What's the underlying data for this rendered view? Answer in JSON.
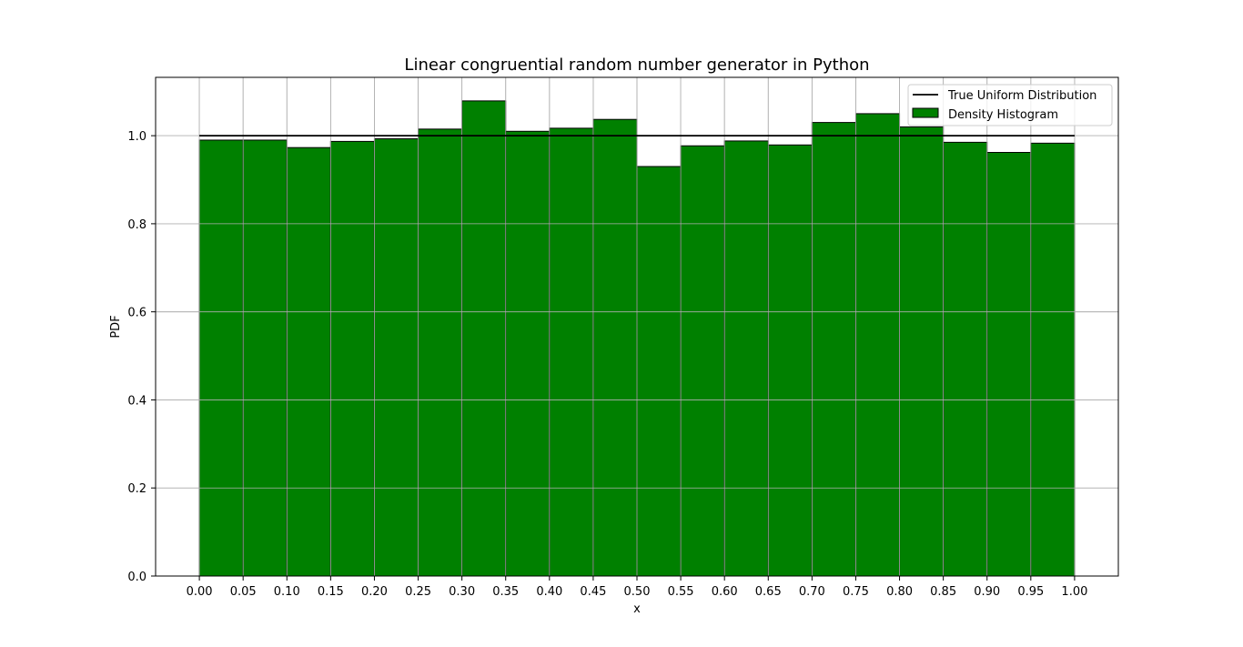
{
  "chart_data": {
    "type": "bar",
    "title": "Linear congruential random number generator in Python",
    "xlabel": "x",
    "ylabel": "PDF",
    "xlim": [
      -0.05,
      1.05
    ],
    "ylim": [
      0.0,
      1.1325
    ],
    "grid": true,
    "legend_position": "top-right",
    "bin_edges": [
      0.0,
      0.05,
      0.1,
      0.15,
      0.2,
      0.25,
      0.3,
      0.35,
      0.4,
      0.45,
      0.5,
      0.55,
      0.6,
      0.65,
      0.7,
      0.75,
      0.8,
      0.85,
      0.9,
      0.95,
      1.0
    ],
    "series": [
      {
        "name": "True Uniform Distribution",
        "kind": "line",
        "color": "#000000",
        "x": [
          0.0,
          1.0
        ],
        "y": [
          1.0,
          1.0
        ]
      },
      {
        "name": "Density Histogram",
        "kind": "histogram",
        "color": "#008000",
        "edgecolor": "#000000",
        "values": [
          0.99,
          0.99,
          0.973,
          0.987,
          0.993,
          1.015,
          1.079,
          1.01,
          1.017,
          1.037,
          0.93,
          0.977,
          0.988,
          0.979,
          1.03,
          1.05,
          1.02,
          0.985,
          0.962,
          0.983
        ]
      }
    ],
    "x_ticks": [
      "0.00",
      "0.05",
      "0.10",
      "0.15",
      "0.20",
      "0.25",
      "0.30",
      "0.35",
      "0.40",
      "0.45",
      "0.50",
      "0.55",
      "0.60",
      "0.65",
      "0.70",
      "0.75",
      "0.80",
      "0.85",
      "0.90",
      "0.95",
      "1.00"
    ],
    "x_tick_values": [
      0.0,
      0.05,
      0.1,
      0.15,
      0.2,
      0.25,
      0.3,
      0.35,
      0.4,
      0.45,
      0.5,
      0.55,
      0.6,
      0.65,
      0.7,
      0.75,
      0.8,
      0.85,
      0.9,
      0.95,
      1.0
    ],
    "y_ticks": [
      "0.0",
      "0.2",
      "0.4",
      "0.6",
      "0.8",
      "1.0"
    ],
    "y_tick_values": [
      0.0,
      0.2,
      0.4,
      0.6,
      0.8,
      1.0
    ],
    "grid_color": "#b0b0b0"
  }
}
